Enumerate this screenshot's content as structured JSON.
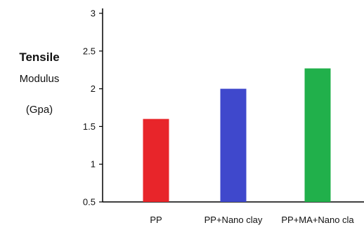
{
  "chart_data": {
    "type": "bar",
    "title": "",
    "xlabel": "",
    "ylabel_lines": [
      "Tensile",
      "Modulus",
      "(Gpa)"
    ],
    "categories": [
      "PP",
      "PP+Nano clay",
      "PP+MA+Nano cla"
    ],
    "values": [
      1.6,
      2.0,
      2.27
    ],
    "colors": [
      "#e8252a",
      "#3f48cc",
      "#21b04b"
    ],
    "ylim": [
      0.5,
      3
    ],
    "yticks": [
      0.5,
      1,
      1.5,
      2,
      2.5,
      3
    ],
    "ytick_labels": [
      "0.5",
      "1",
      "1.5",
      "2",
      "2.5",
      "3"
    ],
    "grid": false,
    "legend": "none"
  }
}
